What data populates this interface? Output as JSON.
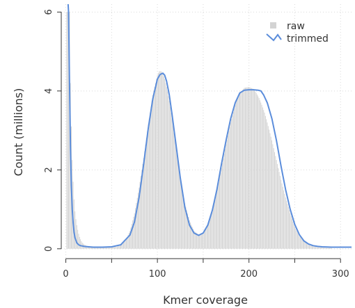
{
  "chart_data": {
    "type": "bar",
    "xlabel": "Kmer coverage",
    "ylabel": "Count (millions)",
    "xlim": [
      -5,
      312
    ],
    "ylim": [
      -0.25,
      6.2
    ],
    "x_ticks": [
      0,
      50,
      100,
      150,
      200,
      250,
      300
    ],
    "x_tick_labels": [
      "0",
      "100",
      "200",
      "300"
    ],
    "y_ticks": [
      0,
      2,
      4,
      6
    ],
    "grid": true,
    "legend_position": "top-right",
    "colors": {
      "raw": "#d3d3d3",
      "trimmed": "#5b8ddb"
    },
    "series": [
      {
        "name": "raw",
        "kind": "histogram",
        "x": [
          1,
          2,
          3,
          4,
          5,
          6,
          7,
          8,
          9,
          10,
          11,
          12,
          13,
          14,
          15,
          16,
          17,
          18,
          20,
          22,
          25,
          30,
          40,
          50,
          55,
          60,
          65,
          70,
          75,
          80,
          85,
          90,
          95,
          100,
          102,
          104,
          106,
          108,
          110,
          113,
          116,
          120,
          125,
          130,
          135,
          140,
          145,
          148,
          150,
          155,
          160,
          165,
          170,
          175,
          180,
          185,
          190,
          195,
          200,
          205,
          208,
          211,
          214,
          217,
          220,
          225,
          230,
          235,
          240,
          245,
          250,
          255,
          260,
          265,
          270,
          275,
          280,
          285,
          290
        ],
        "values": [
          6.0,
          6.0,
          6.0,
          6.0,
          4.2,
          3.1,
          2.25,
          1.7,
          1.25,
          0.95,
          0.75,
          0.6,
          0.48,
          0.38,
          0.3,
          0.24,
          0.19,
          0.15,
          0.11,
          0.08,
          0.06,
          0.05,
          0.04,
          0.04,
          0.05,
          0.09,
          0.2,
          0.45,
          0.9,
          1.55,
          2.3,
          3.15,
          3.9,
          4.4,
          4.5,
          4.5,
          4.45,
          4.3,
          4.1,
          3.75,
          3.3,
          2.6,
          1.8,
          1.15,
          0.72,
          0.45,
          0.36,
          0.36,
          0.4,
          0.6,
          0.95,
          1.45,
          2.05,
          2.65,
          3.2,
          3.65,
          3.95,
          4.08,
          4.1,
          4.05,
          3.95,
          3.82,
          3.65,
          3.45,
          3.2,
          2.75,
          2.25,
          1.75,
          1.3,
          0.9,
          0.55,
          0.32,
          0.18,
          0.1,
          0.06,
          0.04,
          0.03,
          0.02,
          0.02
        ]
      },
      {
        "name": "trimmed",
        "kind": "line",
        "x": [
          0,
          1,
          2,
          3,
          4,
          5,
          6,
          7,
          8,
          9,
          10,
          12,
          14,
          16,
          18,
          20,
          25,
          30,
          40,
          50,
          60,
          70,
          75,
          80,
          85,
          90,
          95,
          100,
          103,
          106,
          108,
          110,
          113,
          116,
          120,
          125,
          130,
          135,
          140,
          145,
          150,
          155,
          160,
          165,
          170,
          175,
          180,
          185,
          190,
          195,
          200,
          205,
          210,
          213,
          216,
          220,
          225,
          230,
          235,
          240,
          245,
          250,
          255,
          260,
          265,
          270,
          275,
          280,
          290,
          300,
          312
        ],
        "values": [
          6.5,
          6.4,
          6.4,
          6.0,
          4.3,
          2.6,
          1.6,
          1.0,
          0.65,
          0.42,
          0.28,
          0.15,
          0.1,
          0.08,
          0.07,
          0.06,
          0.05,
          0.04,
          0.04,
          0.05,
          0.1,
          0.35,
          0.68,
          1.3,
          2.15,
          3.05,
          3.8,
          4.3,
          4.42,
          4.45,
          4.4,
          4.25,
          3.9,
          3.4,
          2.7,
          1.8,
          1.05,
          0.6,
          0.4,
          0.34,
          0.4,
          0.6,
          0.98,
          1.5,
          2.15,
          2.75,
          3.3,
          3.7,
          3.95,
          4.02,
          4.03,
          4.03,
          4.02,
          4.0,
          3.9,
          3.7,
          3.3,
          2.75,
          2.1,
          1.5,
          1.0,
          0.62,
          0.36,
          0.2,
          0.12,
          0.08,
          0.06,
          0.05,
          0.04,
          0.04,
          0.04
        ]
      }
    ]
  }
}
